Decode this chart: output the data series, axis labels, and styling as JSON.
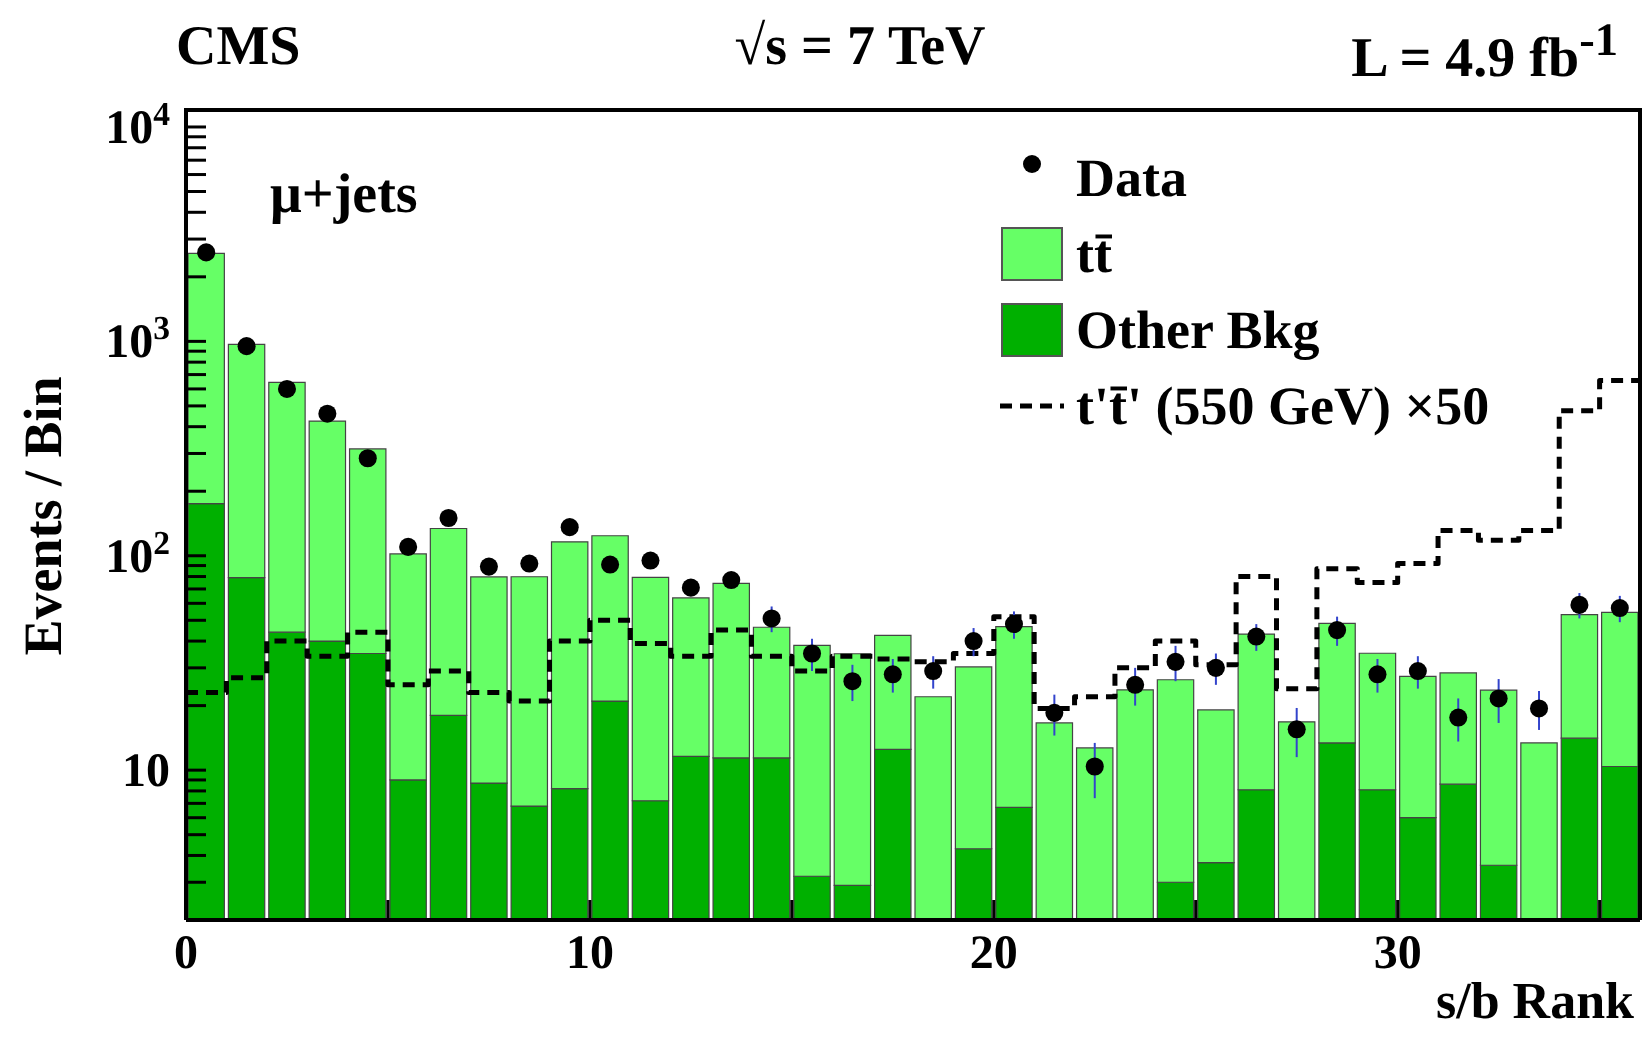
{
  "chart_data": {
    "type": "bar",
    "title": "CMS",
    "xlabel": "s/b Rank",
    "ylabel": "Events / Bin",
    "annotations": [
      "√s = 7 TeV",
      "L = 4.9 fb$^{-1}$",
      "μ+jets"
    ],
    "x": [
      0.5,
      1.5,
      2.5,
      3.5,
      4.5,
      5.5,
      6.5,
      7.5,
      8.5,
      9.5,
      10.5,
      11.5,
      12.5,
      13.5,
      14.5,
      15.5,
      16.5,
      17.5,
      18.5,
      19.5,
      20.5,
      21.5,
      22.5,
      23.5,
      24.5,
      25.5,
      26.5,
      27.5,
      28.5,
      29.5,
      30.5,
      31.5,
      32.5,
      33.5,
      34.5,
      35.5
    ],
    "stacked": true,
    "log": "y",
    "grid": false,
    "legend": "top right",
    "xlim": [
      0,
      36
    ],
    "xticks": [
      0,
      {
        "value": 5,
        "label": null
      },
      10,
      {
        "value": 15,
        "label": null
      },
      20,
      {
        "value": 25,
        "label": null
      },
      30,
      {
        "value": 35,
        "label": null
      }
    ],
    "ylim": [
      2,
      12000
    ],
    "yticks": [
      {
        "value": 3,
        "label": null
      },
      {
        "value": 4,
        "label": null
      },
      {
        "value": 5,
        "label": null
      },
      {
        "value": 6,
        "label": null
      },
      {
        "value": 7,
        "label": null
      },
      {
        "value": 8,
        "label": null
      },
      {
        "value": 9,
        "label": null
      },
      10,
      {
        "value": 20,
        "label": null
      },
      {
        "value": 30,
        "label": null
      },
      {
        "value": 40,
        "label": null
      },
      {
        "value": 50,
        "label": null
      },
      {
        "value": 60,
        "label": null
      },
      {
        "value": 70,
        "label": null
      },
      {
        "value": 80,
        "label": null
      },
      {
        "value": 90,
        "label": null
      },
      {
        "value": 100,
        "label": "10$^{2}$"
      },
      {
        "value": 200,
        "label": null
      },
      {
        "value": 300,
        "label": null
      },
      {
        "value": 400,
        "label": null
      },
      {
        "value": 500,
        "label": null
      },
      {
        "value": 600,
        "label": null
      },
      {
        "value": 700,
        "label": null
      },
      {
        "value": 800,
        "label": null
      },
      {
        "value": 900,
        "label": null
      },
      {
        "value": 1000,
        "label": "10$^{3}$"
      },
      {
        "value": 2000,
        "label": null
      },
      {
        "value": 3000,
        "label": null
      },
      {
        "value": 4000,
        "label": null
      },
      {
        "value": 5000,
        "label": null
      },
      {
        "value": 6000,
        "label": null
      },
      {
        "value": 7000,
        "label": null
      },
      {
        "value": 8000,
        "label": null
      },
      {
        "value": 9000,
        "label": null
      },
      {
        "value": 10000,
        "label": "10$^{4}$"
      }
    ],
    "series": [
      {
        "name": "Data",
        "type": "scatter",
        "color": "#000000",
        "marker": "circle",
        "x": [
          0.5,
          1.5,
          2.5,
          3.5,
          4.5,
          5.5,
          6.5,
          7.5,
          8.5,
          9.5,
          10.5,
          11.5,
          12.5,
          13.5,
          14.5,
          15.5,
          16.5,
          17.5,
          18.5,
          19.5,
          20.5,
          21.5,
          22.5,
          23.5,
          24.5,
          25.5,
          26.5,
          27.5,
          28.5,
          29.5,
          30.5,
          31.5,
          32.5,
          33.5,
          34.5,
          35.5
        ],
        "values": [
          2600,
          950,
          600,
          460,
          285,
          110,
          150,
          89,
          92,
          136,
          91,
          95,
          71,
          77,
          51,
          35,
          26,
          28,
          29,
          40,
          48,
          18.5,
          10.4,
          25,
          32,
          30,
          42,
          15.5,
          45,
          28,
          29,
          17.6,
          21.6,
          19.4,
          59,
          57
        ],
        "errors": [
          null,
          null,
          null,
          null,
          null,
          null,
          null,
          null,
          null,
          null,
          null,
          null,
          null,
          null,
          7,
          6,
          5,
          5,
          5,
          6,
          7,
          4,
          3,
          5,
          6,
          5,
          6,
          4,
          7,
          5,
          5,
          4,
          5,
          4,
          8,
          8
        ]
      },
      {
        "name": "Other Bkg",
        "color": "#00b000",
        "values": [
          175,
          79,
          44,
          40,
          35,
          9,
          18,
          8.7,
          6.8,
          8.2,
          21,
          7.2,
          11.6,
          11.4,
          11.4,
          3.2,
          2.9,
          12.5,
          null,
          4.3,
          6.7,
          null,
          null,
          null,
          3,
          3.7,
          8.1,
          null,
          13.4,
          8.1,
          6,
          8.6,
          3.6,
          null,
          14.1,
          10.4
        ]
      },
      {
        "name": "tt̄",
        "color": "#66ff66",
        "values": [
          2400,
          890,
          600,
          385,
          280,
          93,
          116,
          71,
          73,
          108,
          103,
          72,
          52,
          63,
          35,
          35,
          32,
          30,
          22,
          26,
          40,
          16.6,
          12.7,
          23.7,
          23.4,
          15.4,
          35,
          16.8,
          35,
          27,
          21.4,
          19.8,
          20,
          13.4,
          39,
          44
        ]
      },
      {
        "name": "t't̄' (550 GeV) ×50",
        "type": "step",
        "color": "#000000",
        "line_style": "dashed",
        "x": [
          0,
          1,
          2,
          3,
          4,
          5,
          6,
          7,
          8,
          9,
          10,
          11,
          12,
          13,
          14,
          15,
          16,
          17,
          18,
          19,
          20,
          21,
          22,
          23,
          24,
          25,
          26,
          27,
          28,
          29,
          30,
          31,
          32,
          33,
          34,
          35,
          36
        ],
        "values": [
          23,
          27,
          40,
          34,
          44,
          25,
          29,
          23,
          21,
          40,
          50,
          39,
          34,
          45,
          34,
          29,
          34,
          33,
          32,
          35,
          52,
          19.4,
          22,
          30,
          40,
          31,
          80,
          24,
          87,
          75,
          92,
          131,
          118,
          131,
          475,
          656,
          656
        ]
      }
    ]
  }
}
